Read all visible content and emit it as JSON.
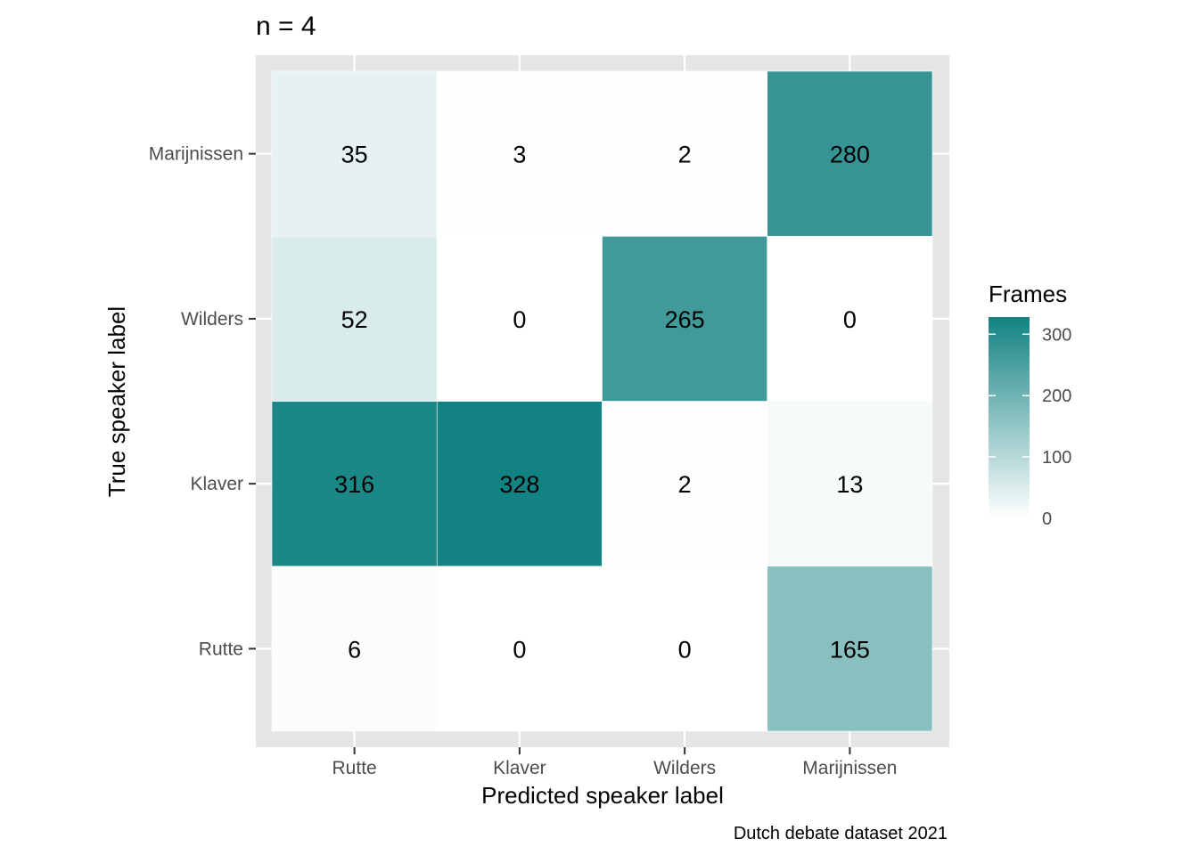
{
  "chart_data": {
    "type": "heatmap",
    "title": "n = 4",
    "xlabel": "Predicted speaker label",
    "ylabel": "True speaker label",
    "caption": "Dutch debate dataset 2021",
    "x_categories": [
      "Rutte",
      "Klaver",
      "Wilders",
      "Marijnissen"
    ],
    "y_categories": [
      "Rutte",
      "Klaver",
      "Wilders",
      "Marijnissen"
    ],
    "values": [
      [
        6,
        0,
        0,
        165
      ],
      [
        316,
        328,
        2,
        13
      ],
      [
        52,
        0,
        265,
        0
      ],
      [
        35,
        3,
        2,
        280
      ]
    ],
    "legend": {
      "title": "Frames",
      "ticks": [
        0,
        100,
        200,
        300
      ],
      "range": [
        0,
        328
      ],
      "low_color": "#ffffff",
      "high_color": "#138282",
      "placement": "right"
    },
    "panel_background": "#e5e5e5",
    "grid": true
  }
}
